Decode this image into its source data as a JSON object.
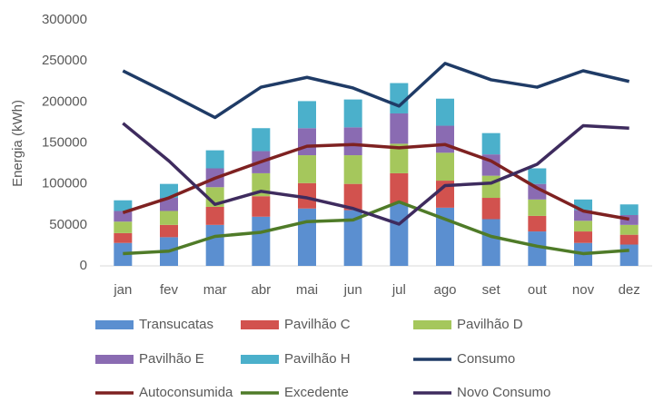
{
  "chart_data": {
    "type": "bar_line",
    "y_label": "Energia (kWh)",
    "categories": [
      "jan",
      "fev",
      "mar",
      "abr",
      "mai",
      "jun",
      "jul",
      "ago",
      "set",
      "out",
      "nov",
      "dez"
    ],
    "series": [
      {
        "name": "Transucatas",
        "kind": "bar",
        "color": "#5b8fd0",
        "values": [
          28000,
          35000,
          50000,
          60000,
          70000,
          68000,
          76000,
          71000,
          57000,
          42000,
          28000,
          26000
        ]
      },
      {
        "name": "Pavilhão C",
        "kind": "bar",
        "color": "#d2524e",
        "values": [
          12000,
          15000,
          22000,
          25000,
          31000,
          32000,
          37000,
          33000,
          26000,
          19000,
          14000,
          12000
        ]
      },
      {
        "name": "Pavilhão D",
        "kind": "bar",
        "color": "#a5c75c",
        "values": [
          14000,
          17000,
          24000,
          28000,
          34000,
          35000,
          36000,
          34000,
          27000,
          20000,
          13000,
          12000
        ]
      },
      {
        "name": "Pavilhão E",
        "kind": "bar",
        "color": "#8a6bb2",
        "values": [
          13000,
          16000,
          23000,
          27000,
          33000,
          34000,
          37000,
          33000,
          26000,
          19000,
          13000,
          12000
        ]
      },
      {
        "name": "Pavilhão H",
        "kind": "bar",
        "color": "#4bb0cb",
        "values": [
          13000,
          17000,
          22000,
          28000,
          33000,
          34000,
          37000,
          33000,
          26000,
          19000,
          13000,
          13000
        ]
      },
      {
        "name": "Consumo",
        "kind": "line",
        "color": "#1f3b66",
        "values": [
          238000,
          210000,
          181000,
          218000,
          230000,
          217000,
          195000,
          247000,
          227000,
          218000,
          238000,
          225000
        ]
      },
      {
        "name": "Autoconsumida",
        "kind": "line",
        "color": "#7e2121",
        "values": [
          65000,
          83000,
          107000,
          127000,
          146000,
          148000,
          144000,
          148000,
          128000,
          95000,
          67000,
          57000
        ]
      },
      {
        "name": "Excedente",
        "kind": "line",
        "color": "#4f7b28",
        "values": [
          15000,
          18000,
          36000,
          41000,
          54000,
          56000,
          78000,
          57000,
          36000,
          24000,
          15000,
          19000
        ]
      },
      {
        "name": "Novo Consumo",
        "kind": "line",
        "color": "#3e2b5e",
        "values": [
          174000,
          128000,
          75000,
          91000,
          83000,
          70000,
          51000,
          98000,
          101000,
          124000,
          171000,
          168000
        ]
      }
    ],
    "ylim": [
      0,
      300000
    ],
    "yticks": [
      0,
      50000,
      100000,
      150000,
      200000,
      250000,
      300000
    ],
    "grid": false,
    "legend": "bottom"
  }
}
